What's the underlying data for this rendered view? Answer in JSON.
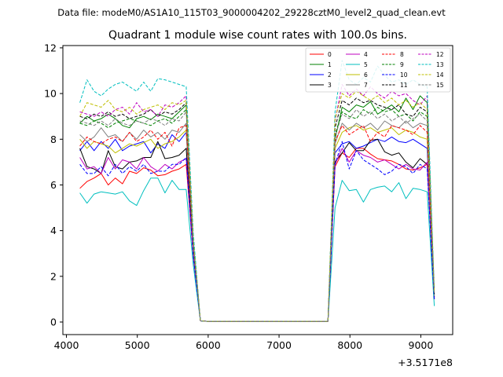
{
  "suptitle": "Data file: modeM0/AS1A10_115T03_9000004202_29228cztM0_level2_quad_clean.evt",
  "offset_label": "+3.5171e8",
  "chart_data": {
    "type": "line",
    "title": "Quadrant 1 module wise count rates with 100.0s bins.",
    "xlabel": "",
    "ylabel": "",
    "x_offset": 351710000,
    "xlim": [
      3950,
      9450
    ],
    "ylim": [
      -0.55,
      12.1
    ],
    "xticks": [
      4000,
      5000,
      6000,
      7000,
      8000,
      9000
    ],
    "yticks": [
      0,
      2,
      4,
      6,
      8,
      10,
      12
    ],
    "grid": false,
    "legend_position": "top-right",
    "x": [
      4190,
      4290,
      4390,
      4490,
      4590,
      4690,
      4790,
      4890,
      4990,
      5090,
      5190,
      5290,
      5390,
      5490,
      5590,
      5690,
      5790,
      5890,
      5990,
      6090,
      6190,
      6290,
      6390,
      6490,
      6590,
      6690,
      6790,
      6890,
      6990,
      7090,
      7190,
      7290,
      7390,
      7490,
      7590,
      7690,
      7790,
      7890,
      7990,
      8090,
      8190,
      8290,
      8390,
      8490,
      8590,
      8690,
      8790,
      8890,
      8990,
      9090,
      9190
    ],
    "series": [
      {
        "name": "0",
        "color": "#ff0000",
        "dash": "solid",
        "values": [
          5.85,
          6.15,
          6.3,
          6.5,
          6.0,
          6.3,
          6.05,
          6.6,
          6.5,
          6.75,
          6.65,
          6.4,
          6.45,
          6.6,
          6.7,
          6.9,
          2.9,
          0.05,
          0.03,
          0.03,
          0.03,
          0.03,
          0.03,
          0.03,
          0.03,
          0.03,
          0.03,
          0.03,
          0.03,
          0.03,
          0.03,
          0.03,
          0.03,
          0.03,
          0.03,
          0.03,
          6.8,
          7.4,
          7.2,
          7.6,
          7.6,
          7.35,
          7.15,
          7.1,
          7.05,
          6.9,
          6.7,
          6.65,
          6.75,
          6.9,
          1.0
        ]
      },
      {
        "name": "1",
        "color": "#008000",
        "dash": "solid",
        "values": [
          8.7,
          9.0,
          8.8,
          8.9,
          9.1,
          8.9,
          8.6,
          8.5,
          8.9,
          9.0,
          8.85,
          9.1,
          9.0,
          8.9,
          9.2,
          9.5,
          3.4,
          0.05,
          0.03,
          0.03,
          0.03,
          0.03,
          0.03,
          0.03,
          0.03,
          0.03,
          0.03,
          0.03,
          0.03,
          0.03,
          0.03,
          0.03,
          0.03,
          0.03,
          0.03,
          0.03,
          8.0,
          9.4,
          9.2,
          9.5,
          9.4,
          9.65,
          9.1,
          9.3,
          9.5,
          9.2,
          9.8,
          9.3,
          9.9,
          9.6,
          1.2
        ]
      },
      {
        "name": "2",
        "color": "#0000ff",
        "dash": "solid",
        "values": [
          7.5,
          7.9,
          7.5,
          7.9,
          7.6,
          8.0,
          7.5,
          7.7,
          7.8,
          7.9,
          7.4,
          7.8,
          7.6,
          8.2,
          7.9,
          8.3,
          3.2,
          0.05,
          0.03,
          0.03,
          0.03,
          0.03,
          0.03,
          0.03,
          0.03,
          0.03,
          0.03,
          0.03,
          0.03,
          0.03,
          0.03,
          0.03,
          0.03,
          0.03,
          0.03,
          0.03,
          7.4,
          7.8,
          7.9,
          7.6,
          7.7,
          7.85,
          8.0,
          7.9,
          8.1,
          7.9,
          7.85,
          8.0,
          7.8,
          7.6,
          1.05
        ]
      },
      {
        "name": "3",
        "color": "#000000",
        "dash": "solid",
        "values": [
          7.6,
          6.8,
          6.7,
          6.5,
          7.5,
          6.8,
          6.7,
          7.0,
          7.05,
          7.2,
          7.2,
          7.9,
          7.15,
          7.2,
          7.3,
          7.6,
          3.0,
          0.05,
          0.03,
          0.03,
          0.03,
          0.03,
          0.03,
          0.03,
          0.03,
          0.03,
          0.03,
          0.03,
          0.03,
          0.03,
          0.03,
          0.03,
          0.03,
          0.03,
          0.03,
          0.03,
          7.0,
          7.4,
          7.85,
          7.5,
          7.5,
          7.95,
          8.0,
          7.45,
          7.3,
          7.4,
          7.0,
          6.75,
          7.15,
          6.9,
          1.0
        ]
      },
      {
        "name": "4",
        "color": "#bf00bf",
        "dash": "solid",
        "values": [
          7.2,
          6.7,
          6.8,
          6.5,
          7.2,
          6.7,
          7.1,
          7.0,
          6.7,
          7.2,
          6.8,
          6.6,
          6.9,
          6.7,
          7.0,
          7.15,
          2.9,
          0.05,
          0.03,
          0.03,
          0.03,
          0.03,
          0.03,
          0.03,
          0.03,
          0.03,
          0.03,
          0.03,
          0.03,
          0.03,
          0.03,
          0.03,
          0.03,
          0.03,
          0.03,
          0.03,
          6.9,
          7.6,
          7.0,
          7.5,
          7.3,
          7.2,
          7.0,
          7.1,
          6.9,
          6.7,
          6.9,
          6.7,
          6.65,
          7.0,
          1.0
        ]
      },
      {
        "name": "5",
        "color": "#00bfbf",
        "dash": "solid",
        "values": [
          5.65,
          5.2,
          5.6,
          5.7,
          5.65,
          5.6,
          5.7,
          5.3,
          5.1,
          5.75,
          6.3,
          6.3,
          5.65,
          6.2,
          5.8,
          5.8,
          2.5,
          0.05,
          0.03,
          0.03,
          0.03,
          0.03,
          0.03,
          0.03,
          0.03,
          0.03,
          0.03,
          0.03,
          0.03,
          0.03,
          0.03,
          0.03,
          0.03,
          0.03,
          0.03,
          0.03,
          5.0,
          6.2,
          5.75,
          5.8,
          5.25,
          5.8,
          5.9,
          5.95,
          5.7,
          6.1,
          5.4,
          5.85,
          5.8,
          5.7,
          0.7
        ]
      },
      {
        "name": "6",
        "color": "#bfbf00",
        "dash": "solid",
        "values": [
          8.0,
          7.6,
          7.9,
          7.8,
          7.7,
          7.4,
          7.6,
          7.8,
          7.7,
          7.85,
          8.0,
          7.6,
          7.8,
          7.9,
          8.1,
          8.4,
          3.3,
          0.05,
          0.03,
          0.03,
          0.03,
          0.03,
          0.03,
          0.03,
          0.03,
          0.03,
          0.03,
          0.03,
          0.03,
          0.03,
          0.03,
          0.03,
          0.03,
          0.03,
          0.03,
          0.03,
          7.6,
          8.3,
          8.5,
          8.6,
          8.4,
          8.5,
          8.3,
          8.4,
          8.5,
          8.2,
          8.4,
          8.3,
          8.1,
          8.0,
          1.1
        ]
      },
      {
        "name": "7",
        "color": "#808080",
        "dash": "solid",
        "values": [
          8.2,
          7.9,
          8.1,
          8.5,
          8.1,
          8.2,
          7.9,
          8.3,
          8.0,
          8.4,
          8.1,
          8.3,
          8.0,
          8.4,
          8.3,
          8.7,
          3.3,
          0.05,
          0.03,
          0.03,
          0.03,
          0.03,
          0.03,
          0.03,
          0.03,
          0.03,
          0.03,
          0.03,
          0.03,
          0.03,
          0.03,
          0.03,
          0.03,
          0.03,
          0.03,
          0.03,
          7.8,
          8.7,
          8.4,
          8.7,
          8.5,
          8.7,
          8.4,
          8.8,
          8.6,
          8.5,
          8.8,
          8.5,
          8.7,
          8.6,
          1.1
        ]
      },
      {
        "name": "8",
        "color": "#ff0000",
        "dash": "dashed",
        "values": [
          7.7,
          8.1,
          7.9,
          7.8,
          8.0,
          8.1,
          7.9,
          8.3,
          7.9,
          8.1,
          8.4,
          8.0,
          8.3,
          7.7,
          8.5,
          8.6,
          3.3,
          0.05,
          0.03,
          0.03,
          0.03,
          0.03,
          0.03,
          0.03,
          0.03,
          0.03,
          0.03,
          0.03,
          0.03,
          0.03,
          0.03,
          0.03,
          0.03,
          0.03,
          0.03,
          0.03,
          7.9,
          8.6,
          8.2,
          8.4,
          8.6,
          7.9,
          8.3,
          8.1,
          8.6,
          8.5,
          8.4,
          8.2,
          8.6,
          8.3,
          1.1
        ]
      },
      {
        "name": "9",
        "color": "#008000",
        "dash": "dashed",
        "values": [
          8.7,
          8.6,
          8.8,
          8.7,
          8.5,
          8.7,
          8.8,
          8.9,
          8.8,
          8.7,
          8.6,
          8.8,
          8.9,
          8.7,
          9.0,
          9.3,
          3.4,
          0.05,
          0.03,
          0.03,
          0.03,
          0.03,
          0.03,
          0.03,
          0.03,
          0.03,
          0.03,
          0.03,
          0.03,
          0.03,
          0.03,
          0.03,
          0.03,
          0.03,
          0.03,
          0.03,
          8.2,
          9.2,
          9.0,
          8.9,
          9.3,
          9.1,
          9.4,
          9.2,
          9.3,
          9.0,
          9.1,
          8.8,
          9.2,
          9.0,
          1.2
        ]
      },
      {
        "name": "10",
        "color": "#0000ff",
        "dash": "dashed",
        "values": [
          6.9,
          6.5,
          6.5,
          6.8,
          6.4,
          6.9,
          6.5,
          6.8,
          6.6,
          6.9,
          6.5,
          6.6,
          6.6,
          6.9,
          6.9,
          7.2,
          2.9,
          0.05,
          0.03,
          0.03,
          0.03,
          0.03,
          0.03,
          0.03,
          0.03,
          0.03,
          0.03,
          0.03,
          0.03,
          0.03,
          0.03,
          0.03,
          0.03,
          0.03,
          0.03,
          0.03,
          6.9,
          7.9,
          6.7,
          7.5,
          7.1,
          6.9,
          6.7,
          6.45,
          6.6,
          6.9,
          6.8,
          6.5,
          6.9,
          6.7,
          0.95
        ]
      },
      {
        "name": "11",
        "color": "#000000",
        "dash": "dashed",
        "values": [
          9.0,
          8.9,
          9.1,
          9.0,
          9.2,
          9.0,
          9.1,
          8.9,
          9.0,
          9.1,
          9.3,
          9.0,
          9.2,
          9.1,
          9.3,
          9.6,
          3.6,
          0.05,
          0.03,
          0.03,
          0.03,
          0.03,
          0.03,
          0.03,
          0.03,
          0.03,
          0.03,
          0.03,
          0.03,
          0.03,
          0.03,
          0.03,
          0.03,
          0.03,
          0.03,
          0.03,
          8.5,
          9.7,
          9.5,
          9.8,
          9.6,
          9.7,
          9.5,
          9.4,
          9.3,
          9.5,
          9.1,
          9.0,
          9.4,
          9.2,
          1.25
        ]
      },
      {
        "name": "12",
        "color": "#bf00bf",
        "dash": "dashed",
        "values": [
          9.2,
          9.1,
          9.0,
          9.2,
          9.0,
          9.3,
          9.4,
          9.1,
          9.6,
          9.2,
          9.3,
          9.0,
          9.5,
          9.4,
          9.6,
          9.9,
          3.7,
          0.05,
          0.03,
          0.03,
          0.03,
          0.03,
          0.03,
          0.03,
          0.03,
          0.03,
          0.03,
          0.03,
          0.03,
          0.03,
          0.03,
          0.03,
          0.03,
          0.03,
          0.03,
          0.03,
          8.8,
          10.4,
          9.9,
          10.2,
          9.9,
          10.3,
          10.0,
          9.8,
          10.1,
          9.9,
          10.0,
          9.7,
          9.5,
          9.9,
          1.3
        ]
      },
      {
        "name": "13",
        "color": "#00bfbf",
        "dash": "dashed",
        "values": [
          9.6,
          10.6,
          10.1,
          9.9,
          10.2,
          10.4,
          10.5,
          10.3,
          10.1,
          10.5,
          10.1,
          10.65,
          10.6,
          10.5,
          10.4,
          10.3,
          3.9,
          0.05,
          0.03,
          0.03,
          0.03,
          0.03,
          0.03,
          0.03,
          0.03,
          0.03,
          0.03,
          0.03,
          0.03,
          0.03,
          0.03,
          0.03,
          0.03,
          0.03,
          0.03,
          0.03,
          9.2,
          11.45,
          10.6,
          10.4,
          10.7,
          10.5,
          11.2,
          10.8,
          10.5,
          10.6,
          10.4,
          10.6,
          10.4,
          10.3,
          1.4
        ]
      },
      {
        "name": "14",
        "color": "#bfbf00",
        "dash": "dashed",
        "values": [
          9.0,
          9.6,
          9.5,
          9.4,
          9.7,
          9.3,
          9.2,
          9.4,
          9.1,
          9.3,
          9.4,
          9.5,
          9.3,
          9.6,
          9.5,
          9.7,
          3.6,
          0.05,
          0.03,
          0.03,
          0.03,
          0.03,
          0.03,
          0.03,
          0.03,
          0.03,
          0.03,
          0.03,
          0.03,
          0.03,
          0.03,
          0.03,
          0.03,
          0.03,
          0.03,
          0.03,
          8.9,
          10.0,
          9.8,
          10.1,
          9.9,
          9.7,
          9.9,
          9.6,
          9.8,
          9.5,
          9.7,
          9.4,
          9.6,
          9.3,
          1.3
        ]
      },
      {
        "name": "15",
        "color": "#808080",
        "dash": "dashed",
        "values": [
          8.8,
          8.7,
          8.6,
          8.8,
          8.6,
          8.9,
          8.7,
          8.6,
          8.8,
          8.7,
          8.9,
          8.8,
          8.6,
          8.9,
          8.8,
          9.2,
          3.4,
          0.05,
          0.03,
          0.03,
          0.03,
          0.03,
          0.03,
          0.03,
          0.03,
          0.03,
          0.03,
          0.03,
          0.03,
          0.03,
          0.03,
          0.03,
          0.03,
          0.03,
          0.03,
          0.03,
          8.1,
          9.1,
          8.9,
          9.3,
          9.0,
          9.2,
          8.9,
          9.1,
          8.8,
          9.0,
          8.7,
          8.9,
          9.1,
          8.8,
          1.15
        ]
      }
    ]
  }
}
